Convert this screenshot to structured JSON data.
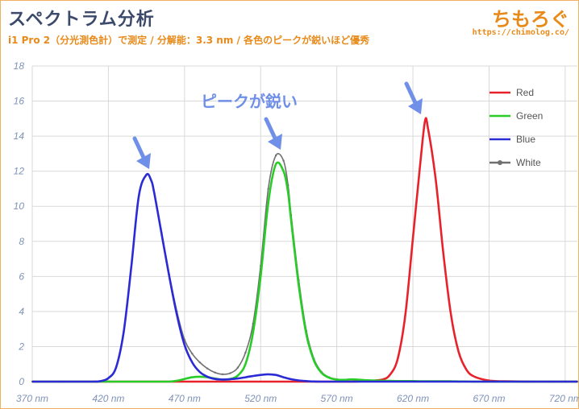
{
  "header": {
    "title": "スペクトラム分析",
    "subtitle": "i1 Pro 2（分光測色計）で測定 / 分解能：3.3 nm / 各色のピークが鋭いほど優秀",
    "brand": "ちもろぐ",
    "url": "https://chimolog.co/"
  },
  "annotation": {
    "text": "ピークが鋭い"
  },
  "colors": {
    "red": "#e8222a",
    "green": "#27cc27",
    "blue": "#2b2bd6",
    "white": "#707070",
    "arrow": "#6f8fe8",
    "grid": "#d9d9d9"
  },
  "chart_data": {
    "type": "line",
    "title": "",
    "xlabel": "",
    "ylabel": "",
    "xlim": [
      370,
      728
    ],
    "ylim": [
      0,
      18
    ],
    "x_ticks": [
      "370 nm",
      "420 nm",
      "470 nm",
      "520 nm",
      "570 nm",
      "620 nm",
      "670 nm",
      "720 nm"
    ],
    "y_ticks": [
      "0",
      "2",
      "4",
      "6",
      "8",
      "10",
      "12",
      "14",
      "16",
      "18"
    ],
    "grid": true,
    "legend_position": "top-right",
    "x": [
      370,
      380,
      390,
      400,
      410,
      415,
      420,
      425,
      430,
      435,
      440,
      445,
      448,
      450,
      455,
      460,
      465,
      470,
      475,
      480,
      485,
      490,
      495,
      500,
      505,
      510,
      515,
      520,
      525,
      530,
      535,
      538,
      540,
      545,
      550,
      555,
      560,
      565,
      570,
      575,
      580,
      590,
      600,
      605,
      610,
      615,
      620,
      625,
      628,
      630,
      635,
      640,
      645,
      650,
      655,
      660,
      670,
      680,
      690,
      700,
      710,
      720,
      728
    ],
    "series": [
      {
        "name": "Red",
        "values": [
          0,
          0,
          0,
          0,
          0,
          0,
          0,
          0,
          0,
          0,
          0,
          0,
          0,
          0,
          0,
          0,
          0,
          0,
          0,
          0,
          0,
          0,
          0,
          0,
          0,
          0,
          0,
          0,
          0,
          0,
          0,
          0,
          0,
          0,
          0,
          0,
          0,
          0,
          0,
          0,
          0,
          0.03,
          0.12,
          0.4,
          1.3,
          3.8,
          8.2,
          12.6,
          14.9,
          14.4,
          11.5,
          7.3,
          3.8,
          1.7,
          0.7,
          0.3,
          0.06,
          0.02,
          0.01,
          0,
          0,
          0,
          0
        ]
      },
      {
        "name": "Green",
        "values": [
          0,
          0,
          0,
          0,
          0,
          0,
          0,
          0,
          0,
          0,
          0,
          0,
          0,
          0,
          0,
          0,
          0.05,
          0.15,
          0.25,
          0.28,
          0.25,
          0.18,
          0.12,
          0.15,
          0.35,
          1.0,
          2.8,
          6.0,
          10.2,
          12.4,
          12.0,
          10.8,
          9.2,
          5.5,
          2.7,
          1.2,
          0.5,
          0.22,
          0.12,
          0.1,
          0.13,
          0.08,
          0.05,
          0.04,
          0.03,
          0.03,
          0.03,
          0.02,
          0.02,
          0.02,
          0.02,
          0.02,
          0.02,
          0.01,
          0.01,
          0,
          0,
          0,
          0,
          0,
          0,
          0,
          0
        ]
      },
      {
        "name": "Blue",
        "values": [
          0,
          0,
          0,
          0,
          0,
          0.03,
          0.2,
          0.8,
          2.8,
          6.5,
          10.6,
          11.8,
          11.5,
          10.8,
          8.4,
          6.0,
          3.8,
          2.1,
          1.1,
          0.55,
          0.28,
          0.15,
          0.12,
          0.14,
          0.18,
          0.25,
          0.32,
          0.38,
          0.42,
          0.38,
          0.25,
          0.18,
          0.14,
          0.07,
          0.03,
          0.01,
          0,
          0,
          0,
          0,
          0,
          0,
          0,
          0,
          0,
          0,
          0,
          0,
          0,
          0,
          0,
          0,
          0,
          0,
          0,
          0,
          0,
          0,
          0,
          0,
          0,
          0,
          0
        ]
      },
      {
        "name": "White",
        "values": [
          0,
          0,
          0,
          0,
          0,
          0.03,
          0.2,
          0.8,
          2.8,
          6.5,
          10.6,
          11.8,
          11.5,
          10.8,
          8.5,
          6.1,
          4.0,
          2.4,
          1.6,
          1.1,
          0.75,
          0.52,
          0.42,
          0.48,
          0.8,
          1.65,
          3.3,
          6.6,
          11.0,
          12.9,
          12.6,
          11.2,
          9.5,
          5.8,
          2.9,
          1.3,
          0.55,
          0.25,
          0.14,
          0.11,
          0.13,
          0.08,
          0.05,
          0.04,
          0.03,
          0.03,
          0.03,
          0.02,
          0.02,
          0.02,
          0.02,
          0.02,
          0.02,
          0.01,
          0.01,
          0,
          0,
          0,
          0,
          0,
          0,
          0,
          0
        ]
      }
    ]
  }
}
